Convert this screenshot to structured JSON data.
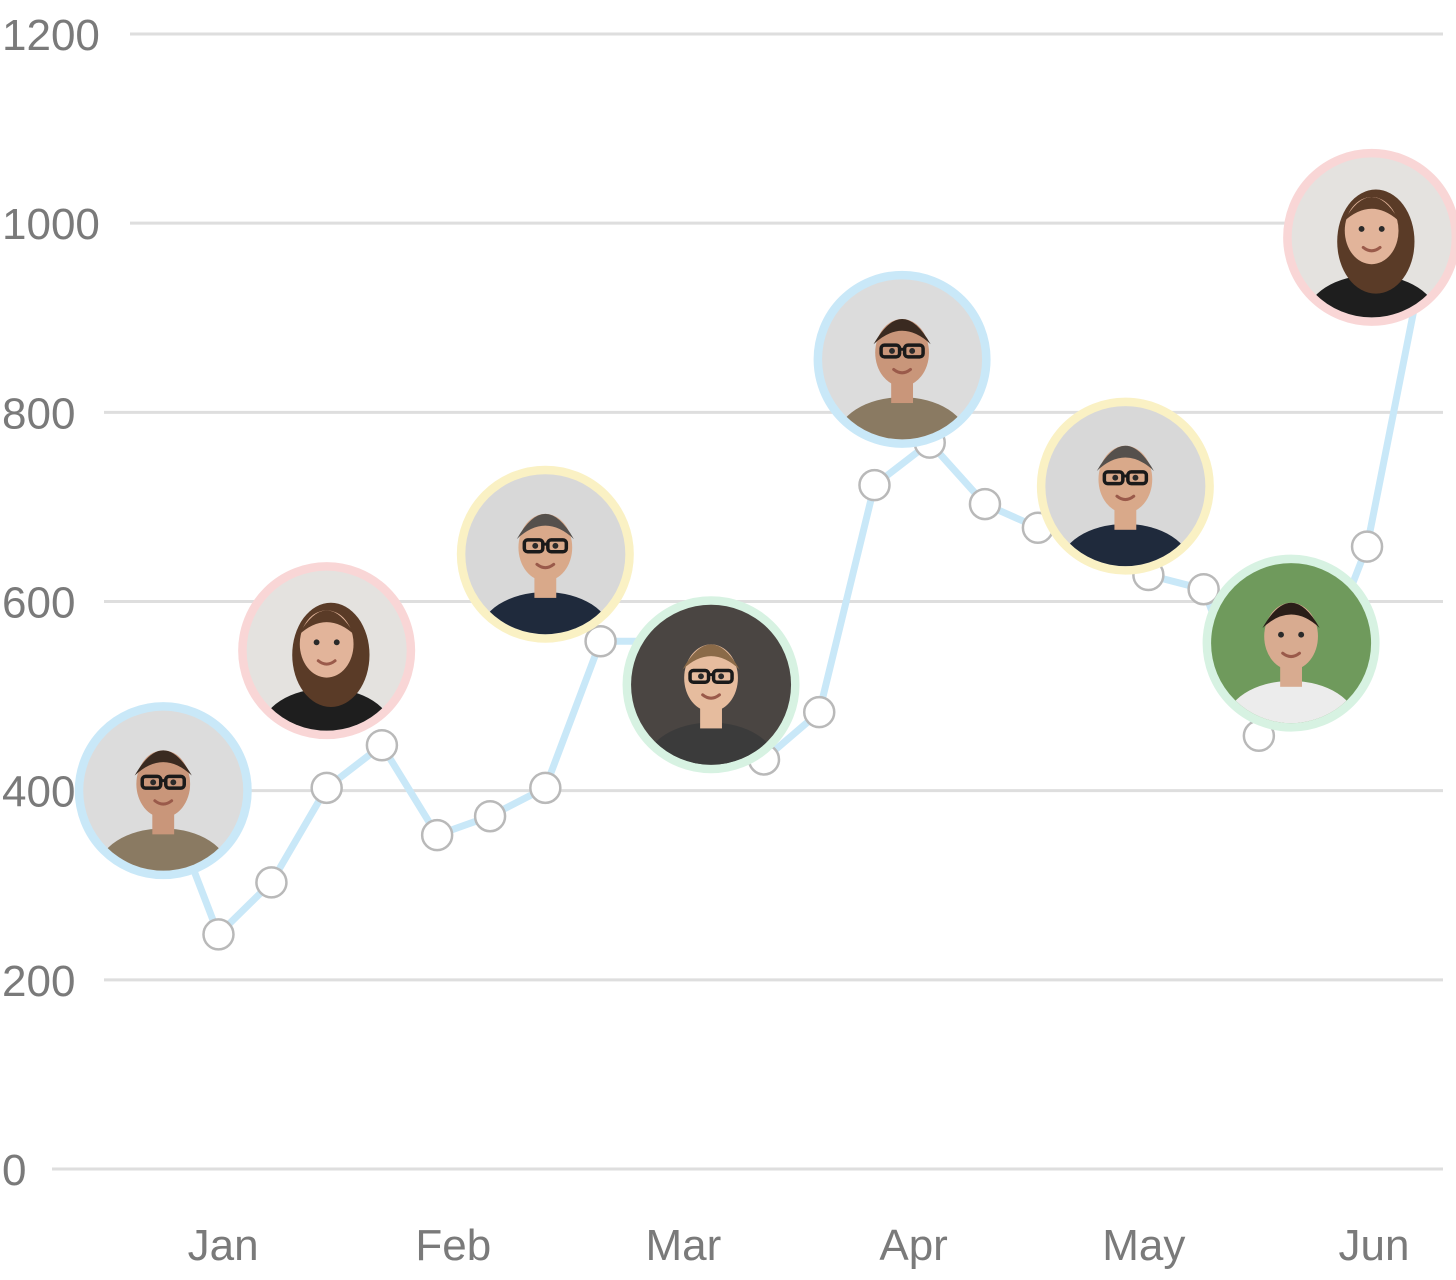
{
  "chart_data": {
    "type": "line",
    "title": "",
    "xlabel": "",
    "ylabel": "",
    "ylim": [
      0,
      1200
    ],
    "xlim": [
      0.5,
      6.3
    ],
    "y_ticks": [
      "0",
      "200",
      "400",
      "600",
      "800",
      "1000",
      "1200"
    ],
    "y_tick_values": [
      0,
      200,
      400,
      600,
      800,
      1000,
      1200
    ],
    "categories": [
      "Jan",
      "Feb",
      "Mar",
      "Apr",
      "May",
      "Jun"
    ],
    "category_positions": [
      1,
      2,
      3,
      4,
      5,
      6
    ],
    "grid": "horizontal",
    "legend": "none",
    "line_color": "#c9e8f8",
    "series": [
      {
        "x": [
          0.74,
          0.98,
          1.21,
          1.45,
          1.69,
          1.93,
          2.16,
          2.4,
          2.64,
          2.88,
          3.12,
          3.35,
          3.59,
          3.83,
          4.07,
          4.31,
          4.54,
          4.78,
          5.02,
          5.26,
          5.5,
          5.73,
          5.97,
          6.21
        ],
        "values": [
          400,
          248,
          303,
          403,
          448,
          353,
          373,
          403,
          558,
          558,
          438,
          433,
          483,
          723,
          768,
          703,
          678,
          718,
          628,
          613,
          458,
          508,
          658,
          953
        ]
      }
    ],
    "avatars": [
      {
        "x": 0.74,
        "y": 400,
        "ring_color": "#c9e8f8",
        "skin": "#c9967a",
        "hair": "#3a2a20",
        "shirt": "#8a7a62",
        "bg": "#dcdcdc",
        "glasses": true
      },
      {
        "x": 1.45,
        "y": 548,
        "ring_color": "#f9d6d6",
        "skin": "#e2b49a",
        "hair": "#5a3b27",
        "shirt": "#1e1e1e",
        "bg": "#e4e2df",
        "glasses": false
      },
      {
        "x": 2.4,
        "y": 650,
        "ring_color": "#faf1c4",
        "skin": "#d9a98a",
        "hair": "#55504c",
        "shirt": "#1f2a3c",
        "bg": "#d8d8d8",
        "glasses": true
      },
      {
        "x": 3.12,
        "y": 512,
        "ring_color": "#d7f2e2",
        "skin": "#e6bc9e",
        "hair": "#8a6a48",
        "shirt": "#3b3b3b",
        "bg": "#4a4542",
        "glasses": true
      },
      {
        "x": 3.95,
        "y": 856,
        "ring_color": "#c9e8f8",
        "skin": "#c9967a",
        "hair": "#3a2a20",
        "shirt": "#8a7a62",
        "bg": "#dcdcdc",
        "glasses": true
      },
      {
        "x": 4.92,
        "y": 722,
        "ring_color": "#faf1c4",
        "skin": "#d9a98a",
        "hair": "#55504c",
        "shirt": "#1f2a3c",
        "bg": "#d8d8d8",
        "glasses": true
      },
      {
        "x": 5.64,
        "y": 556,
        "ring_color": "#d7f2e2",
        "skin": "#d8ab90",
        "hair": "#2a1e18",
        "shirt": "#ececec",
        "bg": "#6f9a5c",
        "glasses": false
      },
      {
        "x": 5.99,
        "y": 985,
        "ring_color": "#f9d6d6",
        "skin": "#e2b49a",
        "hair": "#5a3b27",
        "shirt": "#1e1e1e",
        "bg": "#e4e2df",
        "glasses": false
      }
    ]
  }
}
